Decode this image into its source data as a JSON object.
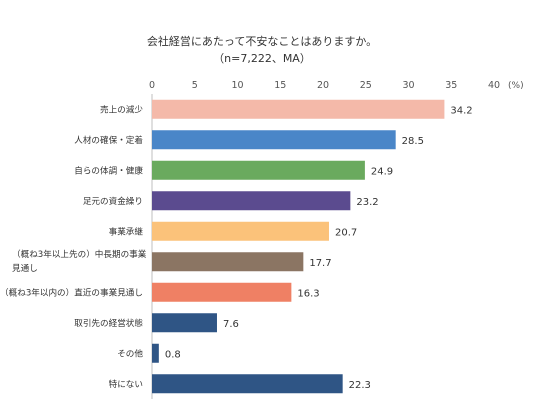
{
  "chart_data": {
    "type": "bar",
    "orientation": "horizontal",
    "title": "会社経営にあたって不安なことはありますか。",
    "subtitle": "（n=7,222、MA）",
    "unit": "(%)",
    "xlim": [
      0,
      40
    ],
    "ticks": [
      "0",
      "5",
      "10",
      "15",
      "20",
      "25",
      "30",
      "35",
      "40"
    ],
    "grid": false,
    "categories": [
      [
        "売上の減少"
      ],
      [
        "人材の確保・定着"
      ],
      [
        "自らの体調・健康"
      ],
      [
        "足元の資金繰り"
      ],
      [
        "事業承継"
      ],
      [
        "（概ね3年以上先の）中長期の事業",
        "見通し"
      ],
      [
        "（概ね3年以内の）直近の事業見通し"
      ],
      [
        "取引先の経営状態"
      ],
      [
        "その他"
      ],
      [
        "特にない"
      ]
    ],
    "values": [
      34.2,
      28.5,
      24.9,
      23.2,
      20.7,
      17.7,
      16.3,
      7.6,
      0.8,
      22.3
    ],
    "value_labels": [
      "34.2",
      "28.5",
      "24.9",
      "23.2",
      "20.7",
      "17.7",
      "16.3",
      "7.6",
      "0.8",
      "22.3"
    ],
    "colors": [
      "#f4b9a9",
      "#4a86c8",
      "#6aaa5e",
      "#5b4b8f",
      "#fbc27a",
      "#8b7563",
      "#ef8064",
      "#2f5585",
      "#2f5585",
      "#2f5585"
    ]
  }
}
